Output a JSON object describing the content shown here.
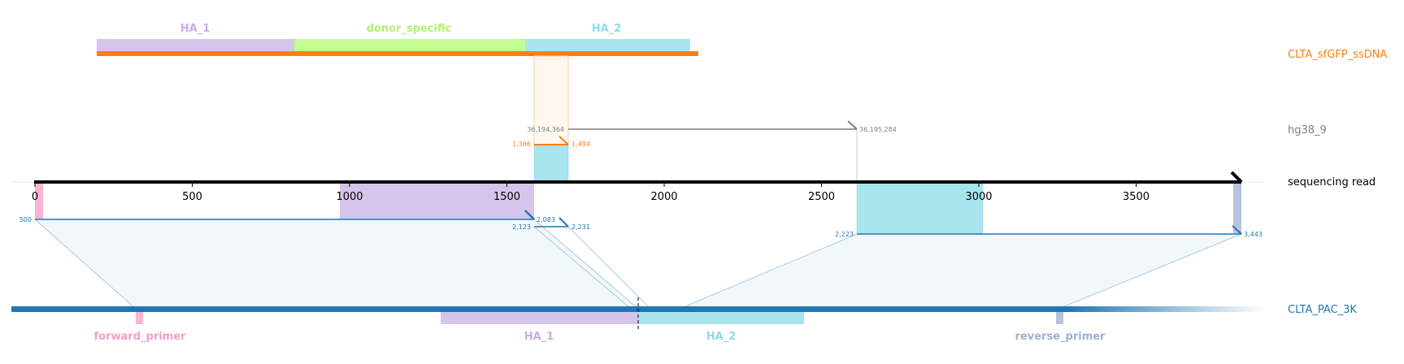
{
  "colors": {
    "ha1": "#d5c5ea",
    "ha1_text": "#c7aee6",
    "donor": "#c3fd93",
    "donor_text": "#b4f06e",
    "ha2": "#a9e5ef",
    "ha2_text": "#8fdbe8",
    "ssdna": "#ff7f0e",
    "genome": "#7f7f7f",
    "read": "#000000",
    "amplicon": "#1f77b4",
    "forward_primer": "#f7b6d2",
    "forward_primer_text": "#f59dc8",
    "reverse_primer": "#b6c3dc",
    "reverse_primer_text": "#9fb0d0",
    "connector": "#a8cbe6",
    "fill": "#f2f7fa"
  },
  "tracks": {
    "donor_label": "CLTA_sfGFP_ssDNA",
    "genome_label": "hg38_9",
    "read_label": "sequencing read",
    "amplicon_label": "CLTA_PAC_3K"
  },
  "donor_features": {
    "ha1": "HA_1",
    "donor_specific": "donor_specific",
    "ha2": "HA_2"
  },
  "amplicon_features": {
    "forward_primer": "forward_primer",
    "ha1": "HA_1",
    "ha2": "HA_2",
    "reverse_primer": "reverse_primer"
  },
  "read_axis": {
    "ticks": [
      "0",
      "500",
      "1000",
      "1500",
      "2000",
      "2500",
      "3000",
      "3500"
    ]
  },
  "alignments": {
    "donor_start": "1,386",
    "donor_end": "1,494",
    "genome_start": "36,194,364",
    "genome_end": "36,195,284",
    "amp1_start": "500",
    "amp1_end": "2,083",
    "amp2_start": "2,123",
    "amp2_end": "2,231",
    "amp3_start": "2,223",
    "amp3_end": "3,443"
  }
}
